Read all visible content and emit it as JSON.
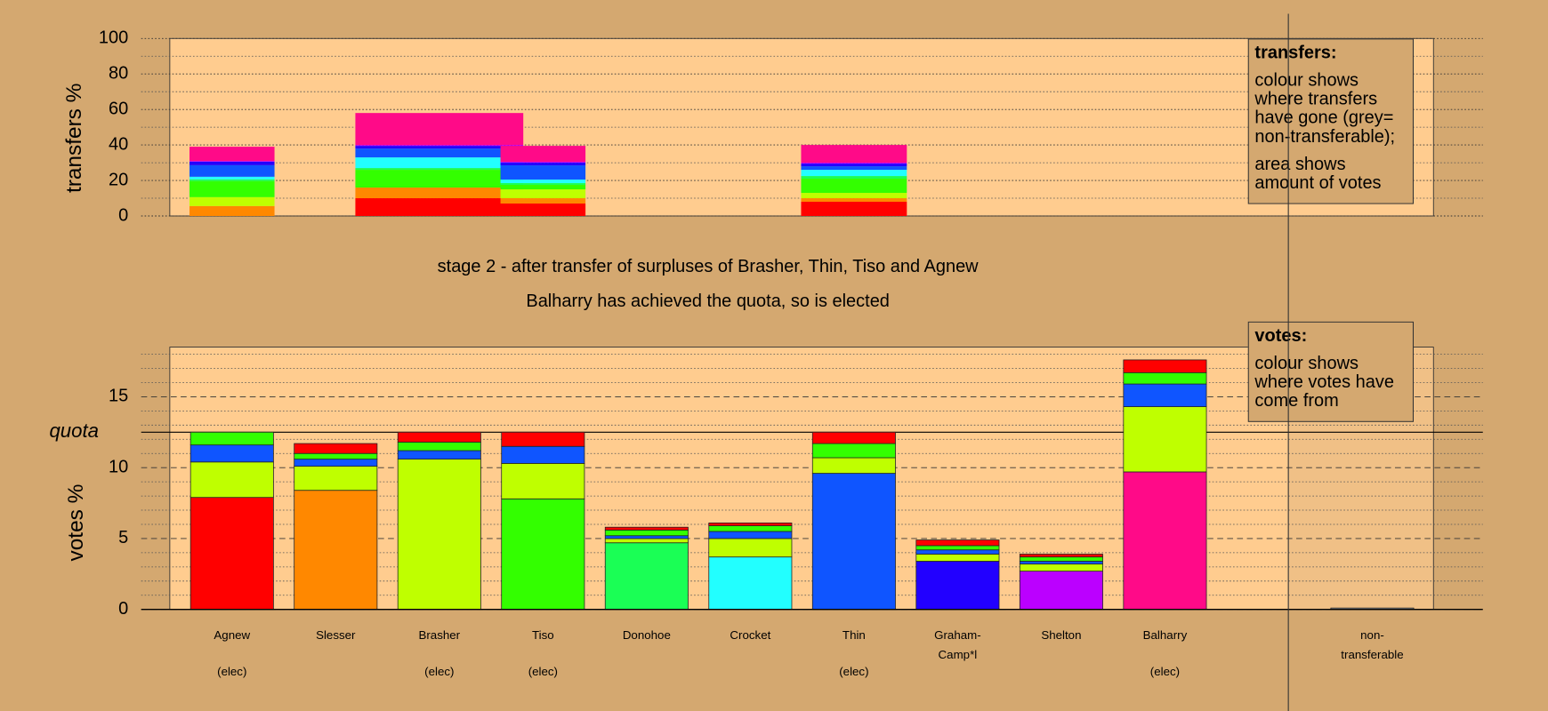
{
  "chart_data": [
    {
      "type": "bar",
      "ylabel": "transfers %",
      "ylim": [
        0,
        100
      ],
      "yticks": [
        0,
        20,
        40,
        60,
        80,
        100
      ],
      "minor_yticks": [
        10,
        30,
        50,
        70,
        90
      ],
      "xlim": [
        -0.6,
        11.6
      ],
      "bar_x": [
        [
          -0.41,
          0.41
        ],
        [
          1.19,
          2.81
        ],
        [
          2.59,
          3.41
        ],
        [
          5.49,
          6.51
        ]
      ],
      "series": [
        {
          "color": "#ff0000",
          "values": [
            0,
            10,
            7,
            8
          ]
        },
        {
          "color": "#ff8800",
          "values": [
            5.6,
            6,
            3,
            2
          ]
        },
        {
          "color": "#bfff00",
          "values": [
            5,
            0,
            5,
            3
          ]
        },
        {
          "color": "#33ff00",
          "values": [
            9,
            10,
            2.5,
            8
          ]
        },
        {
          "color": "#1aff55",
          "values": [
            1,
            1,
            1,
            1.5
          ]
        },
        {
          "color": "#22ffff",
          "values": [
            1.5,
            6,
            2,
            3.5
          ]
        },
        {
          "color": "#0f55ff",
          "values": [
            6.5,
            5,
            8,
            2
          ]
        },
        {
          "color": "#2200ff",
          "values": [
            2,
            1.5,
            1.5,
            1.5
          ]
        },
        {
          "color": "#bb00ff",
          "values": [
            0.4,
            0.5,
            0.5,
            0.5
          ]
        },
        {
          "color": "#ff0a88",
          "values": [
            8,
            18,
            9,
            10
          ]
        }
      ],
      "legend": {
        "title": "transfers:",
        "lines": [
          "colour shows where transfers have gone (grey= non-transferable);",
          "area shows amount of votes"
        ]
      }
    },
    {
      "type": "stacked-bar",
      "title": "stage 2 - after transfer of surpluses of Brasher, Thin, Tiso and Agnew",
      "subtitle": "Balharry has achieved the quota, so is elected",
      "ylabel": "votes %",
      "ylim": [
        0,
        18.5
      ],
      "yticks": [
        0,
        5,
        10,
        15
      ],
      "minor_yticks": [
        1,
        2,
        3,
        4,
        6,
        7,
        8,
        9,
        11,
        12,
        13,
        14,
        16,
        17,
        18
      ],
      "quota": {
        "value": 12.5,
        "label": "quota"
      },
      "categories": [
        "Agnew",
        "Slesser",
        "Brasher",
        "Tiso",
        "Donohoe",
        "Crocket",
        "Thin",
        "Graham-Camp*l",
        "Shelton",
        "Balharry",
        null,
        "non-transferable"
      ],
      "category_notes": [
        "(elec)",
        null,
        "(elec)",
        "(elec)",
        null,
        null,
        "(elec)",
        null,
        null,
        "(elec)",
        null,
        null
      ],
      "series": [
        {
          "color": "#bfff00",
          "values": [
            2.5,
            1.7,
            10.6,
            2.5,
            0.3,
            1.3,
            1.1,
            0.5,
            0.5,
            4.6,
            0,
            0
          ]
        },
        {
          "color": "#0f55ff",
          "values": [
            1.2,
            0.5,
            0.6,
            1.2,
            0.2,
            0.5,
            9.6,
            0.3,
            0.2,
            1.6,
            0,
            0
          ]
        },
        {
          "color": "#33ff00",
          "values": [
            0.9,
            0.4,
            0.6,
            7.8,
            0.4,
            0.4,
            1.0,
            0.3,
            0.3,
            0.8,
            0,
            0
          ]
        },
        {
          "color": "#ff0000",
          "values": [
            7.9,
            0.7,
            0.7,
            1.0,
            0.2,
            0.2,
            0.8,
            0.4,
            0.2,
            0.9,
            0,
            0
          ]
        },
        {
          "color": "#ff8800",
          "values": [
            0,
            8.4,
            0,
            0,
            0,
            0,
            0,
            0,
            0,
            0,
            0,
            0
          ]
        },
        {
          "color": "#1aff55",
          "values": [
            0,
            0,
            0,
            0,
            4.7,
            0,
            0,
            0,
            0,
            0,
            0,
            0
          ]
        },
        {
          "color": "#22ffff",
          "values": [
            0,
            0,
            0,
            0,
            0,
            3.7,
            0,
            0,
            0,
            0,
            0,
            0
          ]
        },
        {
          "color": "#2200ff",
          "values": [
            0,
            0,
            0,
            0,
            0,
            0,
            0,
            3.4,
            0,
            0,
            0,
            0
          ]
        },
        {
          "color": "#bb00ff",
          "values": [
            0,
            0,
            0,
            0,
            0,
            0,
            0,
            0,
            2.7,
            0,
            0,
            0
          ]
        },
        {
          "color": "#ff0a88",
          "values": [
            0,
            0,
            0,
            0,
            0,
            0,
            0,
            0,
            0,
            9.7,
            0,
            0
          ]
        },
        {
          "color": "#999999",
          "values": [
            0,
            0,
            0,
            0,
            0,
            0,
            0,
            0,
            0,
            0,
            0,
            0.1
          ]
        }
      ],
      "legend": {
        "title": "votes:",
        "lines": [
          "colour shows where votes have come from"
        ]
      }
    }
  ]
}
